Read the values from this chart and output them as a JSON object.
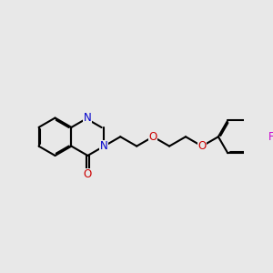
{
  "background_color": "#e8e8e8",
  "bond_color": "#000000",
  "N_color": "#0000cc",
  "O_color": "#cc0000",
  "F_color": "#cc00cc",
  "bond_width": 1.5,
  "figsize": [
    3.0,
    3.0
  ],
  "dpi": 100,
  "xlim": [
    0,
    10
  ],
  "ylim": [
    0,
    10
  ],
  "bl": 0.78
}
